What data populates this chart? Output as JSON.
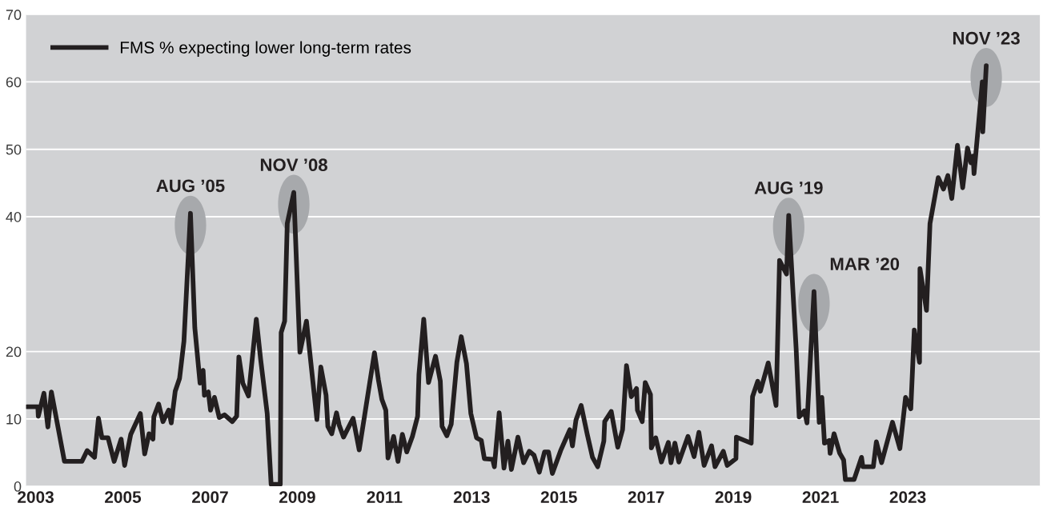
{
  "chart_data": {
    "type": "line",
    "x": [
      2002.8,
      2003.05,
      2003.06,
      2003.19,
      2003.28,
      2003.36,
      2003.66,
      2004.06,
      2004.18,
      2004.35,
      2004.44,
      2004.52,
      2004.66,
      2004.8,
      2004.96,
      2005.04,
      2005.18,
      2005.4,
      2005.5,
      2005.6,
      2005.69,
      2005.71,
      2005.82,
      2005.92,
      2006.05,
      2006.11,
      2006.2,
      2006.3,
      2006.4,
      2006.55,
      2006.65,
      2006.77,
      2006.84,
      2006.87,
      2006.96,
      2007.01,
      2007.1,
      2007.21,
      2007.33,
      2007.51,
      2007.61,
      2007.66,
      2007.75,
      2007.88,
      2008.06,
      2008.16,
      2008.31,
      2008.4,
      2008.61,
      2008.63,
      2008.71,
      2008.77,
      2008.92,
      2009.06,
      2009.21,
      2009.45,
      2009.54,
      2009.66,
      2009.7,
      2009.79,
      2009.9,
      2009.96,
      2010.06,
      2010.28,
      2010.42,
      2010.66,
      2010.77,
      2010.86,
      2010.94,
      2011.03,
      2011.08,
      2011.21,
      2011.31,
      2011.41,
      2011.51,
      2011.64,
      2011.76,
      2011.79,
      2011.9,
      2012.01,
      2012.17,
      2012.28,
      2012.32,
      2012.43,
      2012.53,
      2012.66,
      2012.76,
      2012.88,
      2012.98,
      2013.11,
      2013.22,
      2013.29,
      2013.48,
      2013.52,
      2013.63,
      2013.74,
      2013.83,
      2013.91,
      2014.06,
      2014.19,
      2014.32,
      2014.43,
      2014.55,
      2014.67,
      2014.76,
      2014.85,
      2015.04,
      2015.25,
      2015.31,
      2015.39,
      2015.51,
      2015.65,
      2015.77,
      2015.89,
      2016.03,
      2016.05,
      2016.2,
      2016.35,
      2016.46,
      2016.55,
      2016.66,
      2016.78,
      2016.8,
      2016.91,
      2016.98,
      2017.1,
      2017.12,
      2017.22,
      2017.35,
      2017.51,
      2017.57,
      2017.66,
      2017.75,
      2017.96,
      2018.1,
      2018.21,
      2018.33,
      2018.5,
      2018.58,
      2018.77,
      2018.86,
      2019.06,
      2019.07,
      2019.41,
      2019.44,
      2019.56,
      2019.62,
      2019.8,
      2019.98,
      2020.06,
      2020.22,
      2020.27,
      2020.44,
      2020.51,
      2020.63,
      2020.69,
      2020.85,
      2020.97,
      2021.03,
      2021.09,
      2021.2,
      2021.22,
      2021.31,
      2021.44,
      2021.53,
      2021.57,
      2021.77,
      2021.94,
      2021.97,
      2022.21,
      2022.28,
      2022.4,
      2022.65,
      2022.82,
      2022.95,
      2023.07,
      2023.15,
      2023.27,
      2023.28,
      2023.43,
      2023.51,
      2023.7,
      2023.82,
      2023.92,
      2024.01,
      2024.14,
      2024.26,
      2024.37,
      2024.45,
      2024.5,
      2024.52,
      2024.71,
      2024.72,
      2024.8
    ],
    "series": [
      {
        "name": "FMS % expecting lower long-term rates",
        "color": "#231f20",
        "values": [
          11.8,
          11.8,
          10.4,
          13.8,
          8.8,
          14.0,
          3.7,
          3.7,
          5.3,
          4.3,
          10.1,
          7.2,
          7.2,
          3.7,
          7.0,
          3.1,
          7.7,
          10.8,
          4.8,
          7.8,
          7.0,
          10.3,
          12.2,
          9.6,
          11.3,
          9.4,
          14.1,
          16.0,
          21.5,
          40.5,
          23.5,
          15.3,
          17.2,
          13.5,
          14.0,
          11.3,
          13.2,
          10.2,
          10.6,
          9.6,
          10.4,
          19.2,
          15.3,
          13.4,
          24.8,
          18.8,
          10.8,
          0.3,
          0.3,
          22.8,
          24.5,
          39.0,
          43.6,
          19.9,
          24.5,
          9.9,
          17.7,
          13.5,
          8.9,
          7.8,
          10.9,
          9.1,
          7.3,
          10.1,
          5.4,
          15.3,
          19.8,
          15.8,
          12.9,
          11.3,
          4.2,
          7.4,
          3.7,
          7.7,
          5.1,
          7.4,
          10.4,
          16.6,
          24.8,
          15.4,
          19.3,
          15.6,
          8.9,
          7.5,
          9.2,
          18.4,
          22.2,
          18.2,
          10.8,
          7.2,
          6.8,
          4.1,
          4.0,
          2.9,
          10.9,
          2.7,
          6.7,
          2.5,
          7.3,
          3.5,
          5.2,
          4.6,
          2.1,
          5.1,
          5.1,
          1.9,
          5.3,
          8.4,
          6.0,
          9.8,
          12.0,
          7.7,
          4.3,
          2.9,
          6.7,
          9.6,
          11.1,
          5.8,
          8.4,
          17.9,
          13.3,
          14.5,
          11.3,
          9.6,
          15.4,
          13.6,
          5.7,
          7.2,
          3.6,
          6.5,
          3.5,
          6.4,
          3.6,
          7.4,
          4.4,
          8.0,
          3.1,
          6.0,
          2.9,
          5.2,
          3.1,
          4.1,
          7.3,
          6.4,
          13.3,
          15.6,
          14.1,
          18.3,
          12.0,
          33.5,
          31.5,
          40.2,
          20.5,
          10.3,
          11.2,
          9.4,
          28.9,
          9.5,
          13.2,
          6.4,
          6.8,
          4.9,
          7.8,
          4.9,
          3.9,
          1.0,
          1.0,
          4.3,
          2.9,
          2.9,
          6.6,
          3.5,
          9.5,
          5.6,
          13.2,
          11.5,
          23.2,
          18.4,
          32.3,
          26.1,
          39.0,
          45.8,
          44.1,
          46.1,
          42.7,
          50.6,
          44.3,
          50.2,
          48.0,
          49.0,
          46.4,
          60.0,
          52.6,
          62.4
        ]
      }
    ],
    "xlim": [
      2002.78,
      2026.03
    ],
    "xticks": [
      2003,
      2005,
      2007,
      2009,
      2011,
      2013,
      2015,
      2017,
      2019,
      2021,
      2023
    ],
    "ylim": [
      0,
      70
    ],
    "yticks": [
      0,
      10,
      20,
      40,
      50,
      60,
      70
    ],
    "grid": "y",
    "legend": "top left",
    "line_style": "solid",
    "marker": "none",
    "annotations": [
      {
        "text": "AUG ’05",
        "x": 2006.55,
        "y": 40.5
      },
      {
        "text": "NOV ’08",
        "x": 2008.92,
        "y": 43.6
      },
      {
        "text": "AUG ’19",
        "x": 2020.27,
        "y": 40.2
      },
      {
        "text": "MAR ’20",
        "x": 2020.85,
        "y": 28.9
      },
      {
        "text": "NOV ’23",
        "x": 2024.8,
        "y": 62.4
      }
    ]
  }
}
